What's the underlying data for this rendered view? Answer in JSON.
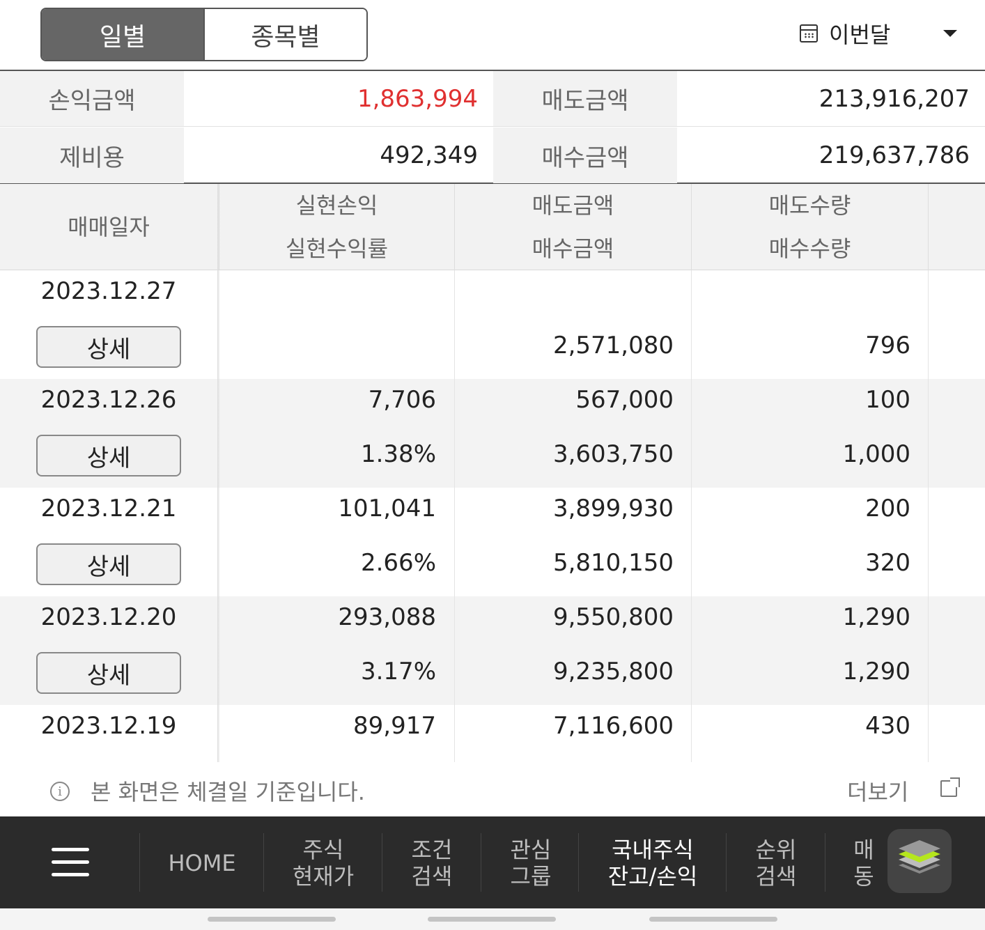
{
  "tabs": [
    {
      "label": "일별",
      "active": true
    },
    {
      "label": "종목별",
      "active": false
    }
  ],
  "period": {
    "icon": "calendar-icon",
    "label": "이번달",
    "caret_icon": "caret-down-icon"
  },
  "summary": {
    "profit_label": "손익금액",
    "profit_value": "1,863,994",
    "sell_label": "매도금액",
    "sell_value": "213,916,207",
    "fee_label": "제비용",
    "fee_value": "492,349",
    "buy_label": "매수금액",
    "buy_value": "219,637,786"
  },
  "table": {
    "headers": {
      "date": "매매일자",
      "realized_pl": "실현손익",
      "realized_rate": "실현수익률",
      "sell_amount": "매도금액",
      "buy_amount": "매수금액",
      "sell_qty": "매도수량",
      "buy_qty": "매수수량"
    },
    "detail_label": "상세",
    "rows": [
      {
        "date": "2023.12.27",
        "pl": "",
        "rate": "",
        "sell_amt": "",
        "buy_amt": "2,571,080",
        "sell_qty": "",
        "buy_qty": "796"
      },
      {
        "date": "2023.12.26",
        "pl": "7,706",
        "rate": "1.38%",
        "sell_amt": "567,000",
        "buy_amt": "3,603,750",
        "sell_qty": "100",
        "buy_qty": "1,000"
      },
      {
        "date": "2023.12.21",
        "pl": "101,041",
        "rate": "2.66%",
        "sell_amt": "3,899,930",
        "buy_amt": "5,810,150",
        "sell_qty": "200",
        "buy_qty": "320"
      },
      {
        "date": "2023.12.20",
        "pl": "293,088",
        "rate": "3.17%",
        "sell_amt": "9,550,800",
        "buy_amt": "9,235,800",
        "sell_qty": "1,290",
        "buy_qty": "1,290"
      },
      {
        "date": "2023.12.19",
        "pl": "89,917",
        "rate": "",
        "sell_amt": "7,116,600",
        "buy_amt": "",
        "sell_qty": "430",
        "buy_qty": ""
      }
    ]
  },
  "notice": {
    "icon": "info-icon",
    "text": "본 화면은 체결일 기준입니다.",
    "more_label": "더보기",
    "more_icon": "external-link-icon"
  },
  "nav": {
    "menu_icon": "hamburger-menu-icon",
    "items": [
      {
        "label": "HOME"
      },
      {
        "line1": "주식",
        "line2": "현재가"
      },
      {
        "line1": "조건",
        "line2": "검색"
      },
      {
        "line1": "관심",
        "line2": "그룹"
      },
      {
        "line1": "국내주식",
        "line2": "잔고/손익",
        "active": true
      },
      {
        "line1": "순위",
        "line2": "검색"
      },
      {
        "line1": "매",
        "line2": "동"
      }
    ],
    "layers_icon": "layers-icon"
  },
  "colors": {
    "positive": "#e03030",
    "accent_green": "#b5e61d",
    "nav_bg": "#2b2b2b",
    "tab_active": "#666666"
  }
}
